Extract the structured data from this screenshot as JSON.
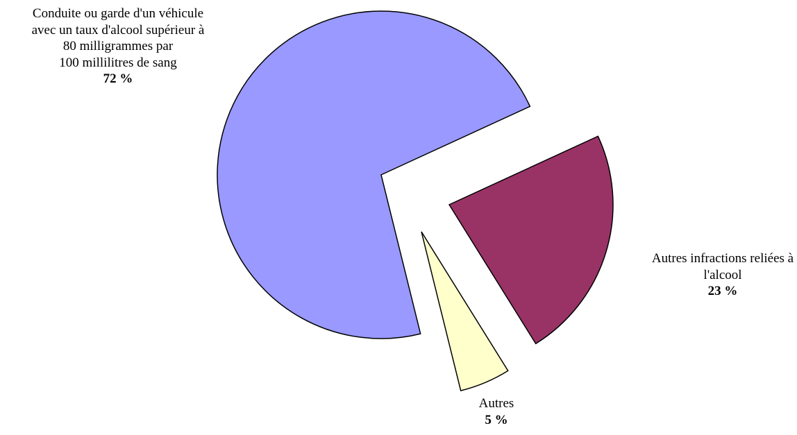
{
  "chart_data": {
    "type": "pie",
    "title": "",
    "slices": [
      {
        "label_lines": [
          "Conduite ou garde d'un véhicule",
          "avec un taux d'alcool supérieur à",
          "80 milligrammes par",
          "100 millilitres de sang"
        ],
        "percent_label": "72 %",
        "value": 72,
        "color": "#9999ff"
      },
      {
        "label_lines": [
          "Autres infractions reliées à",
          "l'alcool"
        ],
        "percent_label": "23 %",
        "value": 23,
        "color": "#993366"
      },
      {
        "label_lines": [
          "Autres"
        ],
        "percent_label": "5 %",
        "value": 5,
        "color": "#ffffcc"
      }
    ],
    "exploded": true,
    "legend": "none"
  }
}
